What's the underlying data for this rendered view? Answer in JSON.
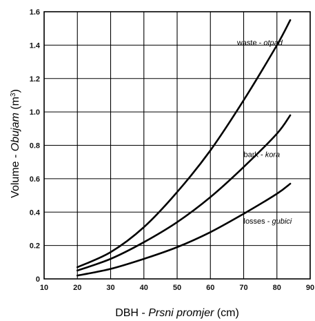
{
  "chart_data": {
    "type": "line",
    "x_axis": {
      "label_main": "DBH - ",
      "label_italic": "Prsni promjer",
      "label_unit": " (cm)",
      "lim": [
        10,
        90
      ],
      "ticks": [
        "10",
        "20",
        "30",
        "40",
        "50",
        "60",
        "70",
        "80",
        "90"
      ]
    },
    "y_axis": {
      "label_main": "Volume - ",
      "label_italic": "Obujam",
      "label_unit": " (m",
      "label_sup": "3",
      "label_close": ")",
      "lim": [
        0,
        1.6
      ],
      "ticks": [
        "0",
        "0.2",
        "0.4",
        "0.6",
        "0.8",
        "1.0",
        "1.2",
        "1.4",
        "1.6"
      ]
    },
    "grid": true,
    "series": [
      {
        "name_main": "waste - ",
        "name_italic": "otpad",
        "x": [
          20,
          30,
          40,
          50,
          60,
          70,
          80,
          84
        ],
        "y": [
          0.07,
          0.16,
          0.31,
          0.52,
          0.77,
          1.07,
          1.4,
          1.55
        ]
      },
      {
        "name_main": "bark - ",
        "name_italic": "kora",
        "x": [
          20,
          30,
          40,
          50,
          60,
          70,
          80,
          84
        ],
        "y": [
          0.05,
          0.12,
          0.22,
          0.34,
          0.49,
          0.67,
          0.87,
          0.98
        ]
      },
      {
        "name_main": "losses - ",
        "name_italic": "gubici",
        "x": [
          20,
          30,
          40,
          50,
          60,
          70,
          80,
          84
        ],
        "y": [
          0.02,
          0.06,
          0.12,
          0.19,
          0.28,
          0.39,
          0.51,
          0.57
        ]
      }
    ]
  }
}
